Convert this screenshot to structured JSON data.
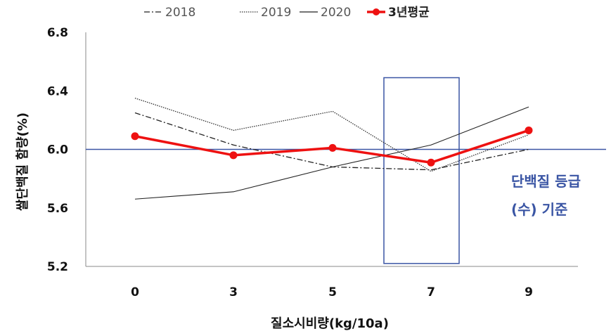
{
  "chart_data": {
    "type": "line",
    "title": "",
    "xlabel": "질소시비량(kg/10a)",
    "ylabel": "쌀단백질 함량(%)",
    "categories": [
      "0",
      "3",
      "5",
      "7",
      "9"
    ],
    "ylim": [
      5.2,
      6.8
    ],
    "yticks": [
      "5.2",
      "5.6",
      "6.0",
      "6.4",
      "6.8"
    ],
    "series": [
      {
        "name": "2018",
        "values": [
          6.25,
          6.03,
          5.88,
          5.86,
          6.0
        ],
        "style": "dashdot",
        "color": "#222222"
      },
      {
        "name": "2019",
        "values": [
          6.35,
          6.13,
          6.26,
          5.85,
          6.1
        ],
        "style": "dotted",
        "color": "#333333"
      },
      {
        "name": "2020",
        "values": [
          5.66,
          5.71,
          5.88,
          6.03,
          6.29
        ],
        "style": "solid",
        "color": "#222222"
      },
      {
        "name": "3년평균",
        "values": [
          6.09,
          5.96,
          6.01,
          5.91,
          6.13
        ],
        "style": "bold-marker",
        "color": "#ee1111"
      }
    ],
    "reference_line": {
      "value": 6.0,
      "color": "#3a55a4"
    },
    "highlight_box": {
      "category": "7",
      "y_range": [
        5.22,
        6.49
      ],
      "color": "#3a55a4"
    },
    "annotation": {
      "line1": "단백질 등급",
      "line2": "(수) 기준",
      "color": "#3a55a4"
    }
  }
}
